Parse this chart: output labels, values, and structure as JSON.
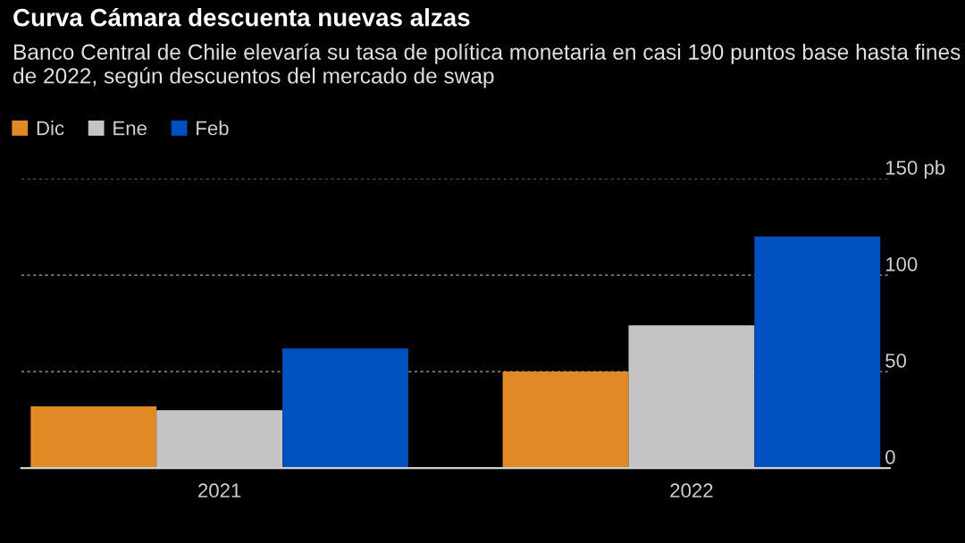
{
  "chart_data": {
    "type": "bar",
    "title": "Curva Cámara descuenta nuevas alzas",
    "subtitle": "Banco Central de Chile elevaría su tasa de política monetaria en casi 190 puntos base hasta fines de 2022, según descuentos del mercado de swap",
    "categories": [
      "2021",
      "2022"
    ],
    "series": [
      {
        "name": "Dic",
        "color": "#e08a26",
        "values": [
          32,
          50
        ]
      },
      {
        "name": "Ene",
        "color": "#c4c4c4",
        "values": [
          30,
          74
        ]
      },
      {
        "name": "Feb",
        "color": "#0050c0",
        "values": [
          62,
          120
        ]
      }
    ],
    "ylim": [
      0,
      150
    ],
    "yticks": [
      0,
      50,
      100,
      {
        "value": 150,
        "label": "150 pb"
      }
    ],
    "grid": "y",
    "legend": "top left"
  }
}
